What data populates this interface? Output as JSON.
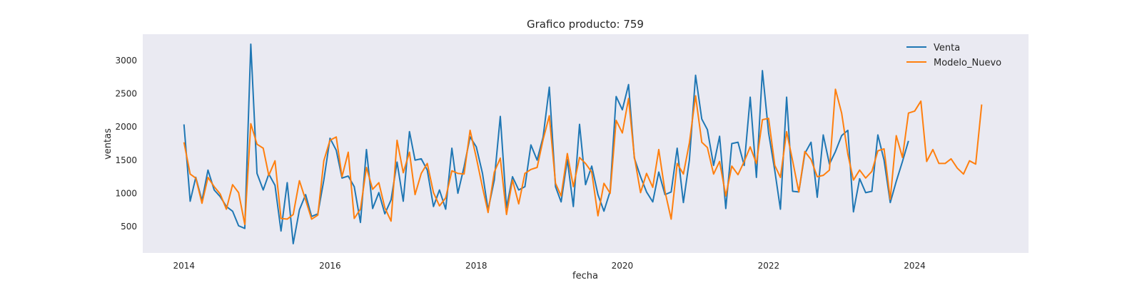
{
  "chart_data": {
    "type": "line",
    "title": "Grafico producto: 759",
    "xlabel": "fecha",
    "ylabel": "ventas",
    "xlim": [
      "2013-06-09",
      "2025-07-23"
    ],
    "ylim": [
      100,
      3400
    ],
    "x_ticks": [
      "2014-01-01",
      "2016-01-01",
      "2018-01-01",
      "2020-01-01",
      "2022-01-01",
      "2024-01-01"
    ],
    "x_tick_labels": [
      "2014",
      "2016",
      "2018",
      "2020",
      "2022",
      "2024"
    ],
    "y_ticks": [
      500,
      1000,
      1500,
      2000,
      2500,
      3000
    ],
    "y_tick_labels": [
      "500",
      "1000",
      "1500",
      "2000",
      "2500",
      "3000"
    ],
    "grid": false,
    "legend_position": "top-right",
    "background": "#eaeaf2",
    "series": [
      {
        "name": "Venta",
        "color": "#1f77b4",
        "start": "2014-01",
        "values": [
          2040,
          880,
          1240,
          890,
          1350,
          1050,
          950,
          800,
          730,
          510,
          470,
          3250,
          1300,
          1050,
          1290,
          1120,
          430,
          1160,
          240,
          750,
          980,
          650,
          690,
          1200,
          1830,
          1650,
          1230,
          1260,
          1100,
          560,
          1660,
          770,
          1010,
          690,
          900,
          1470,
          880,
          1930,
          1500,
          1520,
          1350,
          800,
          1050,
          760,
          1680,
          1000,
          1400,
          1850,
          1700,
          1300,
          750,
          1200,
          2160,
          780,
          1250,
          1050,
          1100,
          1730,
          1500,
          1850,
          2600,
          1100,
          870,
          1510,
          800,
          2040,
          1130,
          1410,
          980,
          730,
          1030,
          2460,
          2260,
          2640,
          1530,
          1250,
          1020,
          870,
          1320,
          980,
          1020,
          1680,
          860,
          1500,
          2780,
          2120,
          1960,
          1420,
          1860,
          770,
          1750,
          1770,
          1420,
          2450,
          1240,
          2850,
          1910,
          1340,
          760,
          2450,
          1030,
          1020,
          1600,
          1770,
          940,
          1880,
          1440,
          1630,
          1870,
          1950,
          720,
          1220,
          1010,
          1030,
          1880,
          1500,
          860,
          1180,
          1480,
          1790
        ]
      },
      {
        "name": "Modelo_Nuevo",
        "color": "#ff7f0e",
        "start": "2014-01",
        "values": [
          1770,
          1290,
          1230,
          850,
          1240,
          1100,
          990,
          760,
          1130,
          1010,
          530,
          2050,
          1740,
          1680,
          1270,
          1490,
          620,
          610,
          680,
          1190,
          900,
          610,
          670,
          1490,
          1800,
          1850,
          1250,
          1620,
          620,
          760,
          1390,
          1060,
          1160,
          780,
          580,
          1800,
          1310,
          1620,
          980,
          1300,
          1450,
          1010,
          810,
          930,
          1340,
          1300,
          1290,
          1950,
          1540,
          1090,
          710,
          1320,
          1530,
          680,
          1200,
          840,
          1300,
          1360,
          1390,
          1810,
          2170,
          1150,
          960,
          1600,
          1100,
          1540,
          1450,
          1320,
          660,
          1150,
          1000,
          2100,
          1910,
          2430,
          1550,
          1010,
          1300,
          1090,
          1660,
          1030,
          610,
          1450,
          1290,
          1760,
          2470,
          1770,
          1690,
          1290,
          1480,
          960,
          1410,
          1280,
          1480,
          1700,
          1450,
          2110,
          2130,
          1420,
          1240,
          1930,
          1490,
          1020,
          1630,
          1510,
          1250,
          1270,
          1350,
          2570,
          2210,
          1590,
          1200,
          1350,
          1230,
          1330,
          1640,
          1670,
          910,
          1870,
          1540,
          2210,
          2240,
          2390,
          1480,
          1660,
          1450,
          1450,
          1520,
          1380,
          1290,
          1490,
          1440,
          2340
        ]
      }
    ]
  }
}
